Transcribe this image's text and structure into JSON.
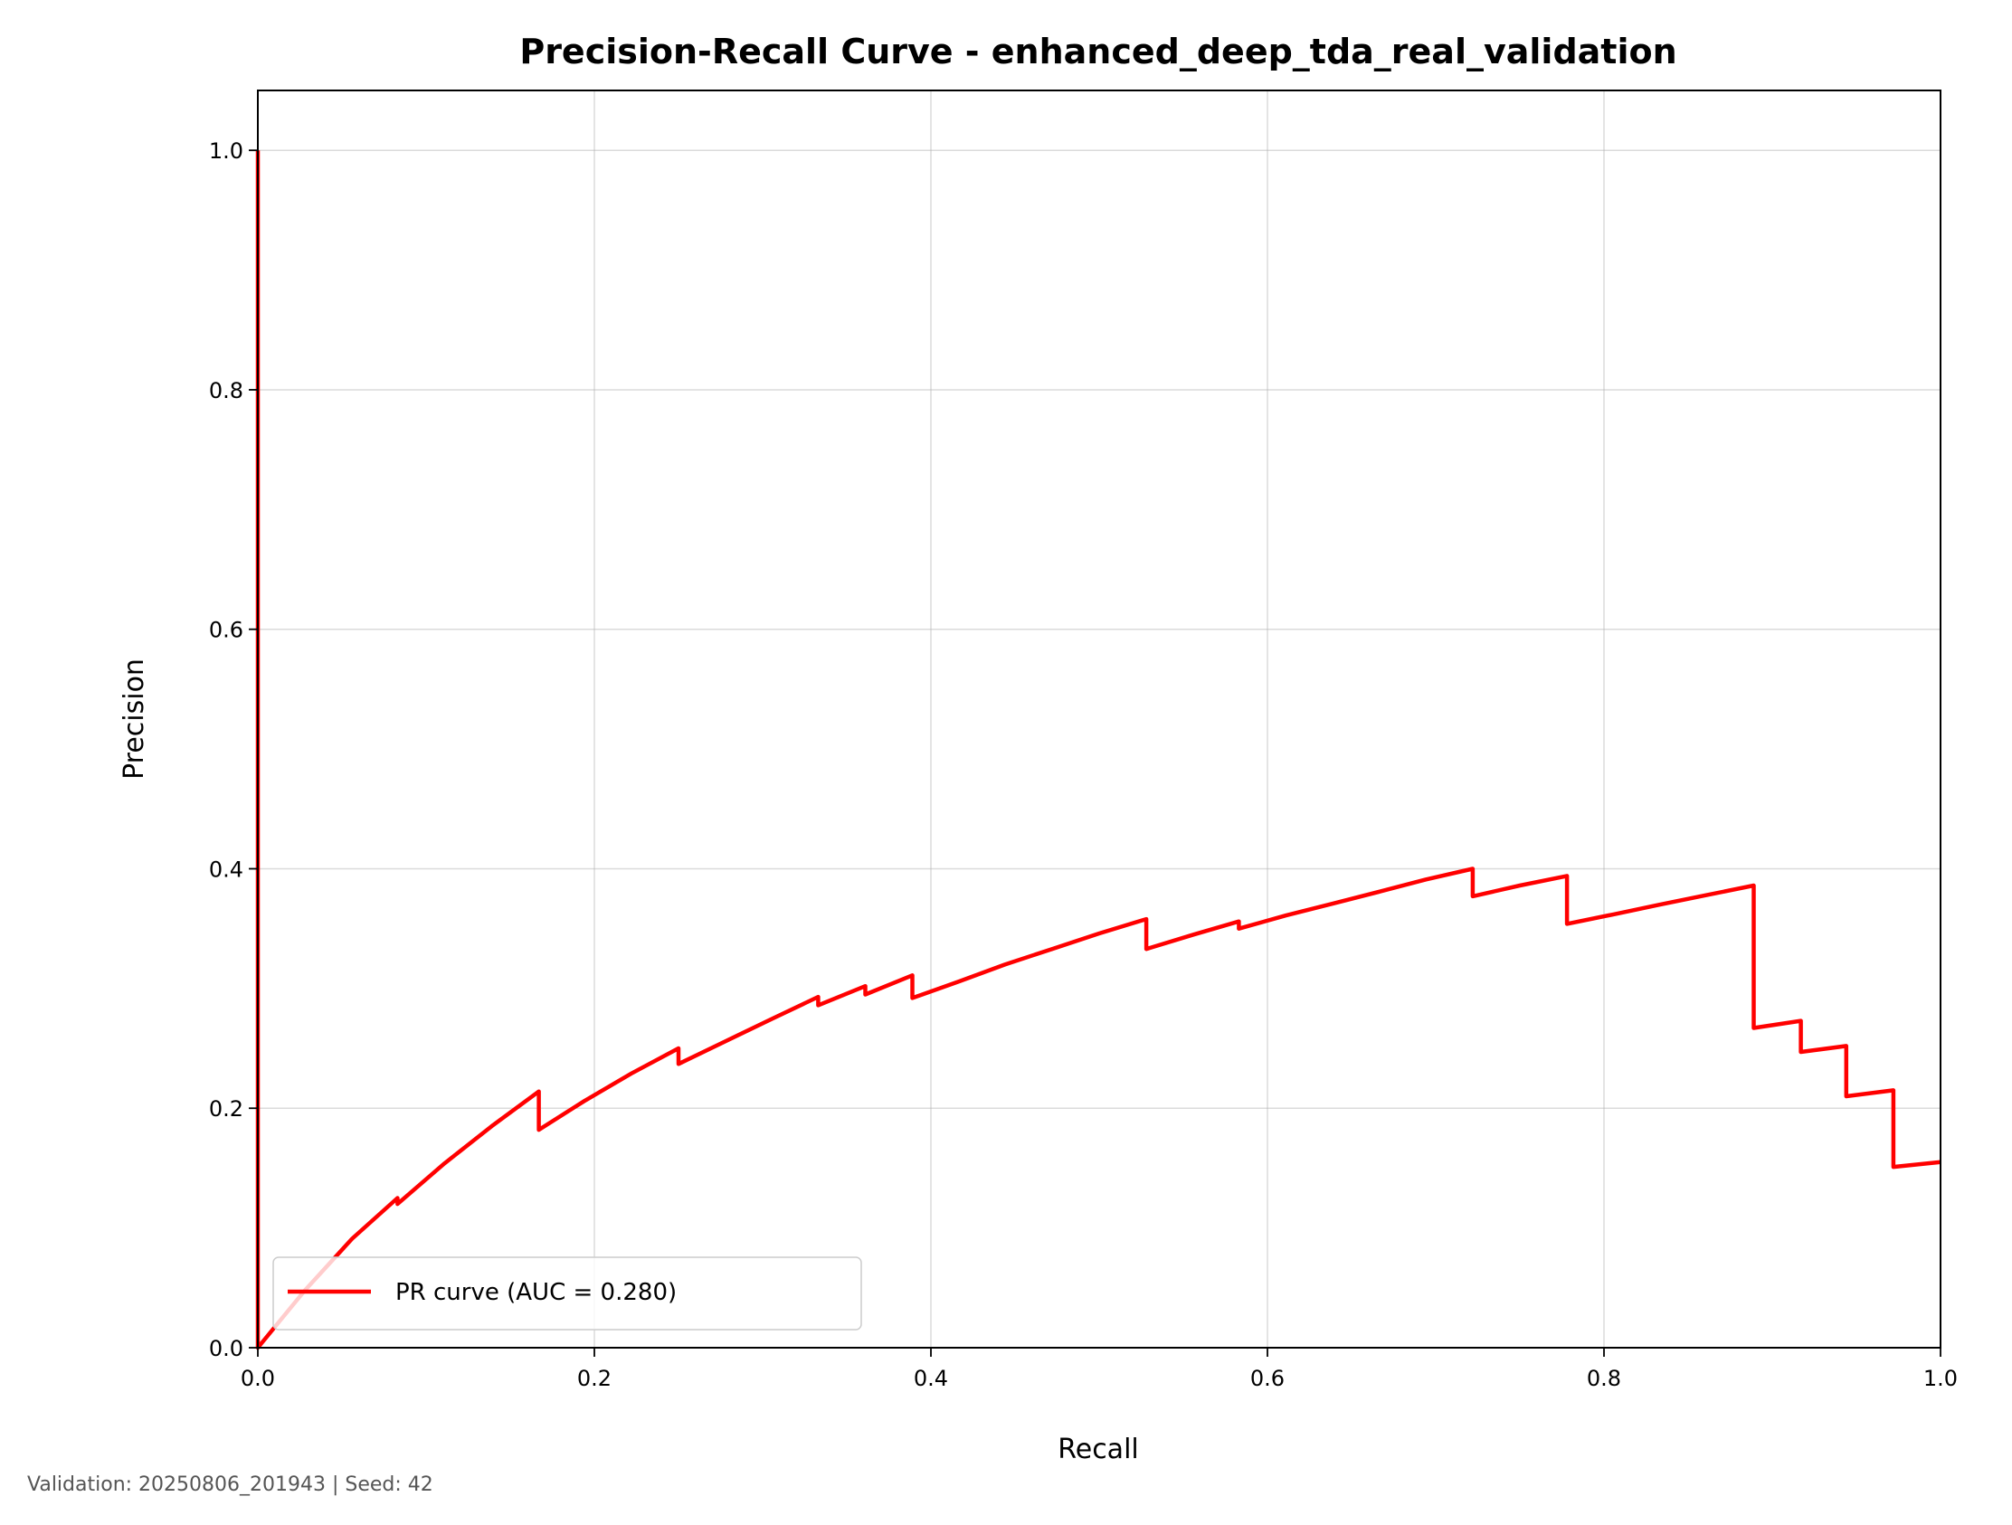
{
  "footer": "Validation: 20250806_201943 | Seed: 42",
  "chart_data": {
    "type": "line",
    "title": "Precision-Recall Curve - enhanced_deep_tda_real_validation",
    "xlabel": "Recall",
    "ylabel": "Precision",
    "xlim": [
      0.0,
      1.0
    ],
    "ylim": [
      0.0,
      1.05
    ],
    "xticks": [
      0.0,
      0.2,
      0.4,
      0.6,
      0.8,
      1.0
    ],
    "yticks": [
      0.0,
      0.2,
      0.4,
      0.6,
      0.8,
      1.0
    ],
    "xtick_labels": [
      "0.0",
      "0.2",
      "0.4",
      "0.6",
      "0.8",
      "1.0"
    ],
    "ytick_labels": [
      "0.0",
      "0.2",
      "0.4",
      "0.6",
      "0.8",
      "1.0"
    ],
    "grid": true,
    "legend_position": "lower-left",
    "series": [
      {
        "name": "PR curve (AUC = 0.280)",
        "color": "#ff0000",
        "x": [
          0.0,
          0.0,
          0.0,
          0.028,
          0.056,
          0.083,
          0.083,
          0.111,
          0.139,
          0.167,
          0.167,
          0.194,
          0.222,
          0.25,
          0.25,
          0.278,
          0.306,
          0.333,
          0.333,
          0.361,
          0.361,
          0.389,
          0.389,
          0.417,
          0.444,
          0.472,
          0.5,
          0.528,
          0.528,
          0.556,
          0.583,
          0.583,
          0.611,
          0.639,
          0.667,
          0.694,
          0.722,
          0.722,
          0.75,
          0.778,
          0.778,
          0.806,
          0.833,
          0.861,
          0.889,
          0.889,
          0.917,
          0.917,
          0.944,
          0.944,
          0.972,
          0.972,
          1.0
        ],
        "y": [
          1.0,
          0.0,
          0.0,
          0.048,
          0.091,
          0.125,
          0.12,
          0.154,
          0.185,
          0.214,
          0.182,
          0.206,
          0.229,
          0.25,
          0.237,
          0.256,
          0.275,
          0.293,
          0.286,
          0.302,
          0.295,
          0.311,
          0.292,
          0.306,
          0.32,
          0.333,
          0.346,
          0.358,
          0.333,
          0.345,
          0.356,
          0.35,
          0.361,
          0.371,
          0.381,
          0.391,
          0.4,
          0.377,
          0.386,
          0.394,
          0.354,
          0.362,
          0.37,
          0.378,
          0.386,
          0.267,
          0.273,
          0.247,
          0.252,
          0.21,
          0.215,
          0.151,
          0.155
        ]
      }
    ]
  }
}
